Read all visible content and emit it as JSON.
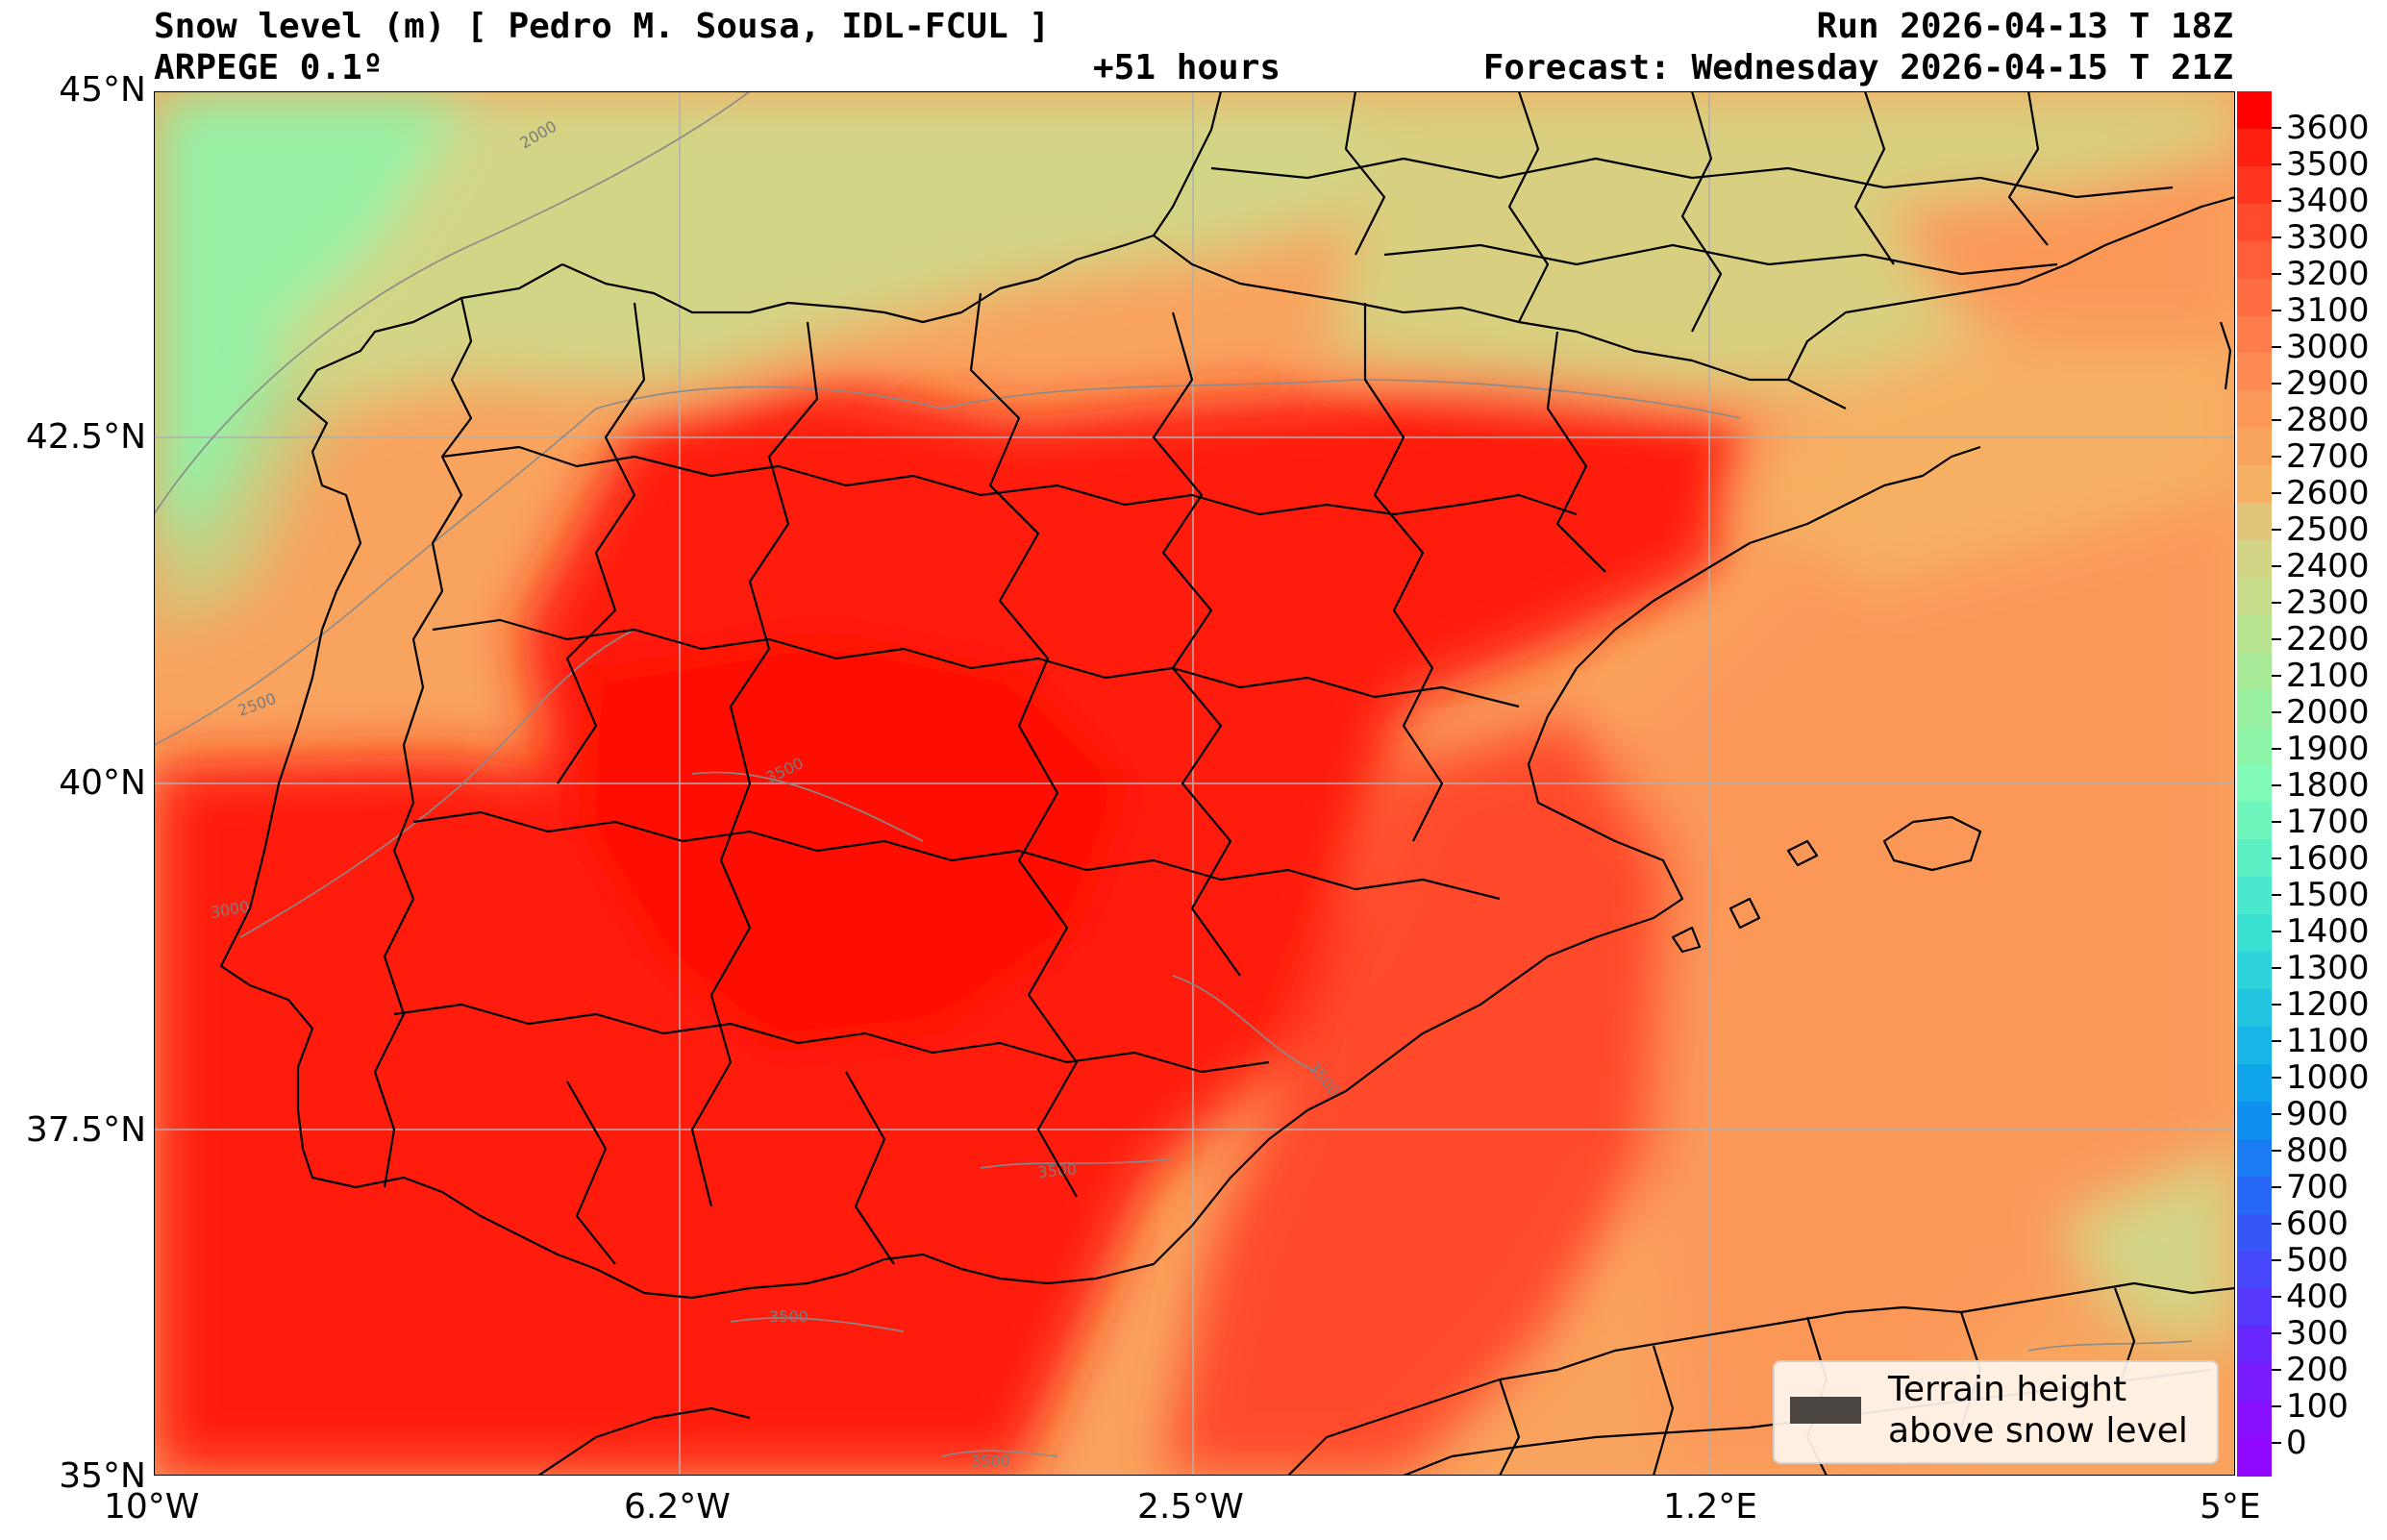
{
  "header": {
    "title_left": "Snow level (m) [ Pedro M. Sousa, IDL-FCUL ]",
    "model": "ARPEGE 0.1º",
    "lead": "+51 hours",
    "run": "Run 2026-04-13 T 18Z",
    "forecast": "Forecast: Wednesday 2026-04-15 T 21Z"
  },
  "axes": {
    "lat_labels": [
      "45°N",
      "42.5°N",
      "40°N",
      "37.5°N",
      "35°N"
    ],
    "lon_labels": [
      "10°W",
      "6.2°W",
      "2.5°W",
      "1.2°E",
      "5°E"
    ],
    "lat_range": [
      35,
      45
    ],
    "lon_range": [
      -10,
      5
    ]
  },
  "colorbar": {
    "labels": [
      "3600",
      "3500",
      "3400",
      "3300",
      "3200",
      "3100",
      "3000",
      "2900",
      "2800",
      "2700",
      "2600",
      "2500",
      "2400",
      "2300",
      "2200",
      "2100",
      "2000",
      "1900",
      "1800",
      "1700",
      "1600",
      "1500",
      "1400",
      "1300",
      "1200",
      "1100",
      "1000",
      "900",
      "800",
      "700",
      "600",
      "500",
      "400",
      "300",
      "200",
      "100",
      "0"
    ],
    "colors": [
      "#ff0000",
      "#ff1f10",
      "#ff3520",
      "#ff4a2c",
      "#ff5e38",
      "#ff6e42",
      "#ff7d4a",
      "#fd8b52",
      "#fb9858",
      "#f9a45e",
      "#f6b064",
      "#e2c47a",
      "#d3d586",
      "#c8dd8c",
      "#b8e492",
      "#a8ea98",
      "#98f0a0",
      "#8cf5a8",
      "#80fab4",
      "#6ef6bc",
      "#5cefc4",
      "#4ae8cc",
      "#38e0d2",
      "#2cd4da",
      "#22c6e0",
      "#18b6e6",
      "#10a4ea",
      "#1090ee",
      "#1a7cf2",
      "#2868f6",
      "#3656f8",
      "#4646fa",
      "#5638fc",
      "#6828fd",
      "#781cfe",
      "#8810ff",
      "#9008ff"
    ]
  },
  "contour_labels": [
    "2000",
    "2500",
    "3000",
    "3500",
    "3500",
    "3500",
    "3500",
    "3500"
  ],
  "legend": {
    "line1": "Terrain height",
    "line2": "above snow level",
    "swatch_color": "#4a4540"
  }
}
